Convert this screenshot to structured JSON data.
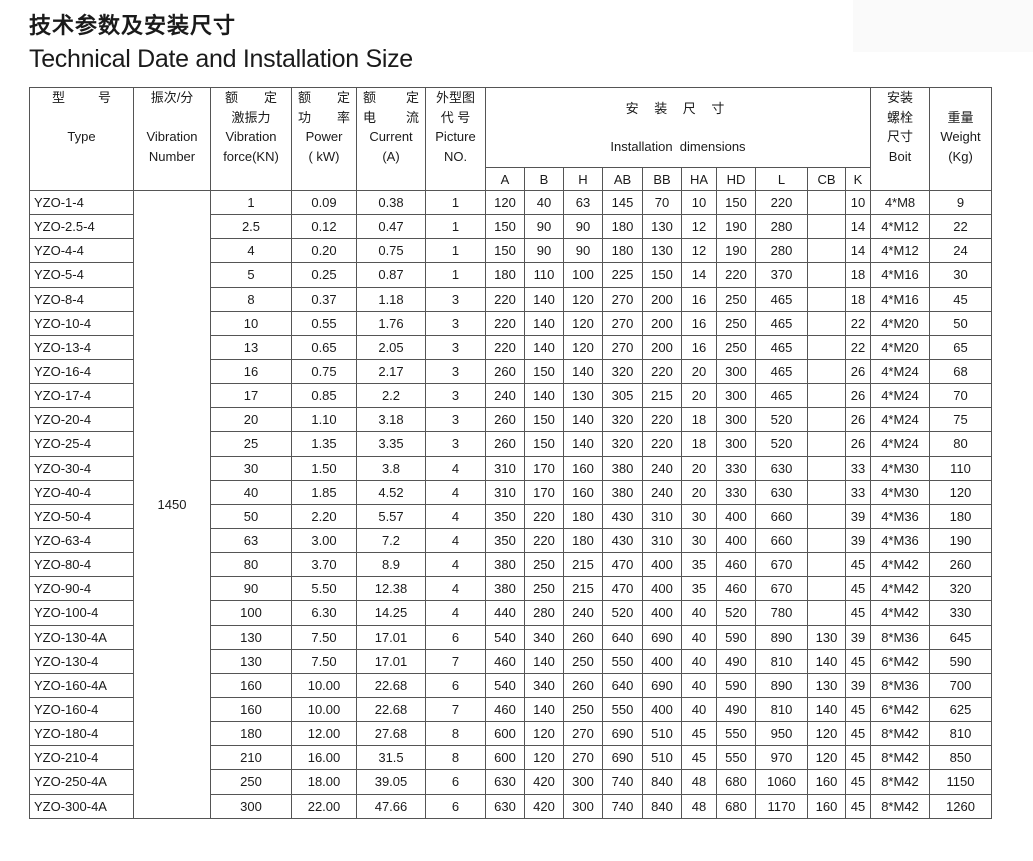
{
  "title_cn": "技术参数及安装尺寸",
  "title_en": "Technical Date and Installation Size",
  "headers": {
    "type": {
      "cn": [
        "型",
        "号"
      ],
      "en": "Type"
    },
    "vibration_number": {
      "cn": "振次/分",
      "en": [
        "Vibration",
        "Number"
      ]
    },
    "force": {
      "cn": [
        "额",
        "定"
      ],
      "cn2": "激振力",
      "en": [
        "Vibration",
        "force(KN)"
      ]
    },
    "power": {
      "cn": [
        "额",
        "定"
      ],
      "cn2": [
        "功",
        "率"
      ],
      "en": [
        "Power",
        "( kW)"
      ]
    },
    "current": {
      "cn": [
        "额",
        "定"
      ],
      "cn2": [
        "电",
        "流"
      ],
      "en": [
        "Current",
        "(A)"
      ]
    },
    "picture": {
      "cn": "外型图",
      "cn2": "代 号",
      "en": [
        "Picture",
        "NO."
      ]
    },
    "installation": {
      "cn": "安 装 尺 寸",
      "en": "Installation  dimensions",
      "cols": [
        "A",
        "B",
        "H",
        "AB",
        "BB",
        "HA",
        "HD",
        "L",
        "CB",
        "K"
      ]
    },
    "bolt": {
      "cn": [
        "安装",
        "螺栓",
        "尺寸"
      ],
      "en": "Boit"
    },
    "weight": {
      "cn": "重量",
      "en": [
        "Weight",
        "(Kg)"
      ]
    }
  },
  "vibration_number_value": "1450",
  "rows": [
    [
      "YZO-1-4",
      "1",
      "0.09",
      "0.38",
      "1",
      "120",
      "40",
      "63",
      "145",
      "70",
      "10",
      "150",
      "220",
      "",
      "10",
      "4*M8",
      "9"
    ],
    [
      "YZO-2.5-4",
      "2.5",
      "0.12",
      "0.47",
      "1",
      "150",
      "90",
      "90",
      "180",
      "130",
      "12",
      "190",
      "280",
      "",
      "14",
      "4*M12",
      "22"
    ],
    [
      "YZO-4-4",
      "4",
      "0.20",
      "0.75",
      "1",
      "150",
      "90",
      "90",
      "180",
      "130",
      "12",
      "190",
      "280",
      "",
      "14",
      "4*M12",
      "24"
    ],
    [
      "YZO-5-4",
      "5",
      "0.25",
      "0.87",
      "1",
      "180",
      "110",
      "100",
      "225",
      "150",
      "14",
      "220",
      "370",
      "",
      "18",
      "4*M16",
      "30"
    ],
    [
      "YZO-8-4",
      "8",
      "0.37",
      "1.18",
      "3",
      "220",
      "140",
      "120",
      "270",
      "200",
      "16",
      "250",
      "465",
      "",
      "18",
      "4*M16",
      "45"
    ],
    [
      "YZO-10-4",
      "10",
      "0.55",
      "1.76",
      "3",
      "220",
      "140",
      "120",
      "270",
      "200",
      "16",
      "250",
      "465",
      "",
      "22",
      "4*M20",
      "50"
    ],
    [
      "YZO-13-4",
      "13",
      "0.65",
      "2.05",
      "3",
      "220",
      "140",
      "120",
      "270",
      "200",
      "16",
      "250",
      "465",
      "",
      "22",
      "4*M20",
      "65"
    ],
    [
      "YZO-16-4",
      "16",
      "0.75",
      "2.17",
      "3",
      "260",
      "150",
      "140",
      "320",
      "220",
      "20",
      "300",
      "465",
      "",
      "26",
      "4*M24",
      "68"
    ],
    [
      "YZO-17-4",
      "17",
      "0.85",
      "2.2",
      "3",
      "240",
      "140",
      "130",
      "305",
      "215",
      "20",
      "300",
      "465",
      "",
      "26",
      "4*M24",
      "70"
    ],
    [
      "YZO-20-4",
      "20",
      "1.10",
      "3.18",
      "3",
      "260",
      "150",
      "140",
      "320",
      "220",
      "18",
      "300",
      "520",
      "",
      "26",
      "4*M24",
      "75"
    ],
    [
      "YZO-25-4",
      "25",
      "1.35",
      "3.35",
      "3",
      "260",
      "150",
      "140",
      "320",
      "220",
      "18",
      "300",
      "520",
      "",
      "26",
      "4*M24",
      "80"
    ],
    [
      "YZO-30-4",
      "30",
      "1.50",
      "3.8",
      "4",
      "310",
      "170",
      "160",
      "380",
      "240",
      "20",
      "330",
      "630",
      "",
      "33",
      "4*M30",
      "110"
    ],
    [
      "YZO-40-4",
      "40",
      "1.85",
      "4.52",
      "4",
      "310",
      "170",
      "160",
      "380",
      "240",
      "20",
      "330",
      "630",
      "",
      "33",
      "4*M30",
      "120"
    ],
    [
      "YZO-50-4",
      "50",
      "2.20",
      "5.57",
      "4",
      "350",
      "220",
      "180",
      "430",
      "310",
      "30",
      "400",
      "660",
      "",
      "39",
      "4*M36",
      "180"
    ],
    [
      "YZO-63-4",
      "63",
      "3.00",
      "7.2",
      "4",
      "350",
      "220",
      "180",
      "430",
      "310",
      "30",
      "400",
      "660",
      "",
      "39",
      "4*M36",
      "190"
    ],
    [
      "YZO-80-4",
      "80",
      "3.70",
      "8.9",
      "4",
      "380",
      "250",
      "215",
      "470",
      "400",
      "35",
      "460",
      "670",
      "",
      "45",
      "4*M42",
      "260"
    ],
    [
      "YZO-90-4",
      "90",
      "5.50",
      "12.38",
      "4",
      "380",
      "250",
      "215",
      "470",
      "400",
      "35",
      "460",
      "670",
      "",
      "45",
      "4*M42",
      "320"
    ],
    [
      "YZO-100-4",
      "100",
      "6.30",
      "14.25",
      "4",
      "440",
      "280",
      "240",
      "520",
      "400",
      "40",
      "520",
      "780",
      "",
      "45",
      "4*M42",
      "330"
    ],
    [
      "YZO-130-4A",
      "130",
      "7.50",
      "17.01",
      "6",
      "540",
      "340",
      "260",
      "640",
      "690",
      "40",
      "590",
      "890",
      "130",
      "39",
      "8*M36",
      "645"
    ],
    [
      "YZO-130-4",
      "130",
      "7.50",
      "17.01",
      "7",
      "460",
      "140",
      "250",
      "550",
      "400",
      "40",
      "490",
      "810",
      "140",
      "45",
      "6*M42",
      "590"
    ],
    [
      "YZO-160-4A",
      "160",
      "10.00",
      "22.68",
      "6",
      "540",
      "340",
      "260",
      "640",
      "690",
      "40",
      "590",
      "890",
      "130",
      "39",
      "8*M36",
      "700"
    ],
    [
      "YZO-160-4",
      "160",
      "10.00",
      "22.68",
      "7",
      "460",
      "140",
      "250",
      "550",
      "400",
      "40",
      "490",
      "810",
      "140",
      "45",
      "6*M42",
      "625"
    ],
    [
      "YZO-180-4",
      "180",
      "12.00",
      "27.68",
      "8",
      "600",
      "120",
      "270",
      "690",
      "510",
      "45",
      "550",
      "950",
      "120",
      "45",
      "8*M42",
      "810"
    ],
    [
      "YZO-210-4",
      "210",
      "16.00",
      "31.5",
      "8",
      "600",
      "120",
      "270",
      "690",
      "510",
      "45",
      "550",
      "970",
      "120",
      "45",
      "8*M42",
      "850"
    ],
    [
      "YZO-250-4A",
      "250",
      "18.00",
      "39.05",
      "6",
      "630",
      "420",
      "300",
      "740",
      "840",
      "48",
      "680",
      "1060",
      "160",
      "45",
      "8*M42",
      "1150"
    ],
    [
      "YZO-300-4A",
      "300",
      "22.00",
      "47.66",
      "6",
      "630",
      "420",
      "300",
      "740",
      "840",
      "48",
      "680",
      "1170",
      "160",
      "45",
      "8*M42",
      "1260"
    ]
  ]
}
